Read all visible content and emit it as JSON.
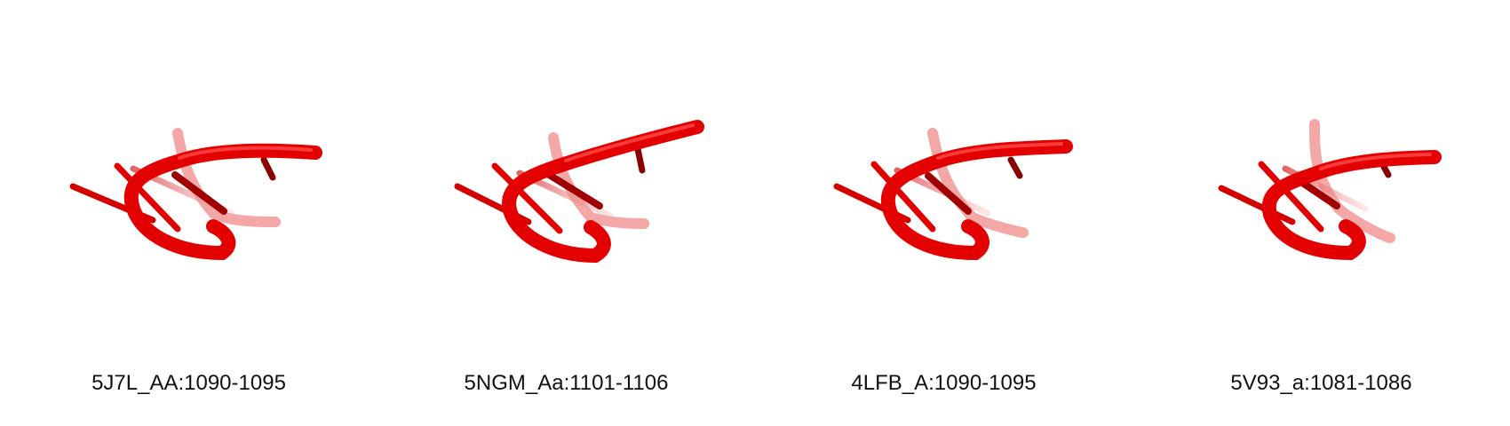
{
  "panels": [
    {
      "label": "5J7L_AA:1090-1095"
    },
    {
      "label": "5NGM_Aa:1101-1106"
    },
    {
      "label": "4LFB_A:1090-1095"
    },
    {
      "label": "5V93_a:1081-1086"
    }
  ],
  "colors": {
    "backbone": "#e30000",
    "backbone_highlight": "#ff2a2a",
    "base_dark": "#8a0000",
    "faded": "#f07a7a",
    "background": "#ffffff"
  }
}
